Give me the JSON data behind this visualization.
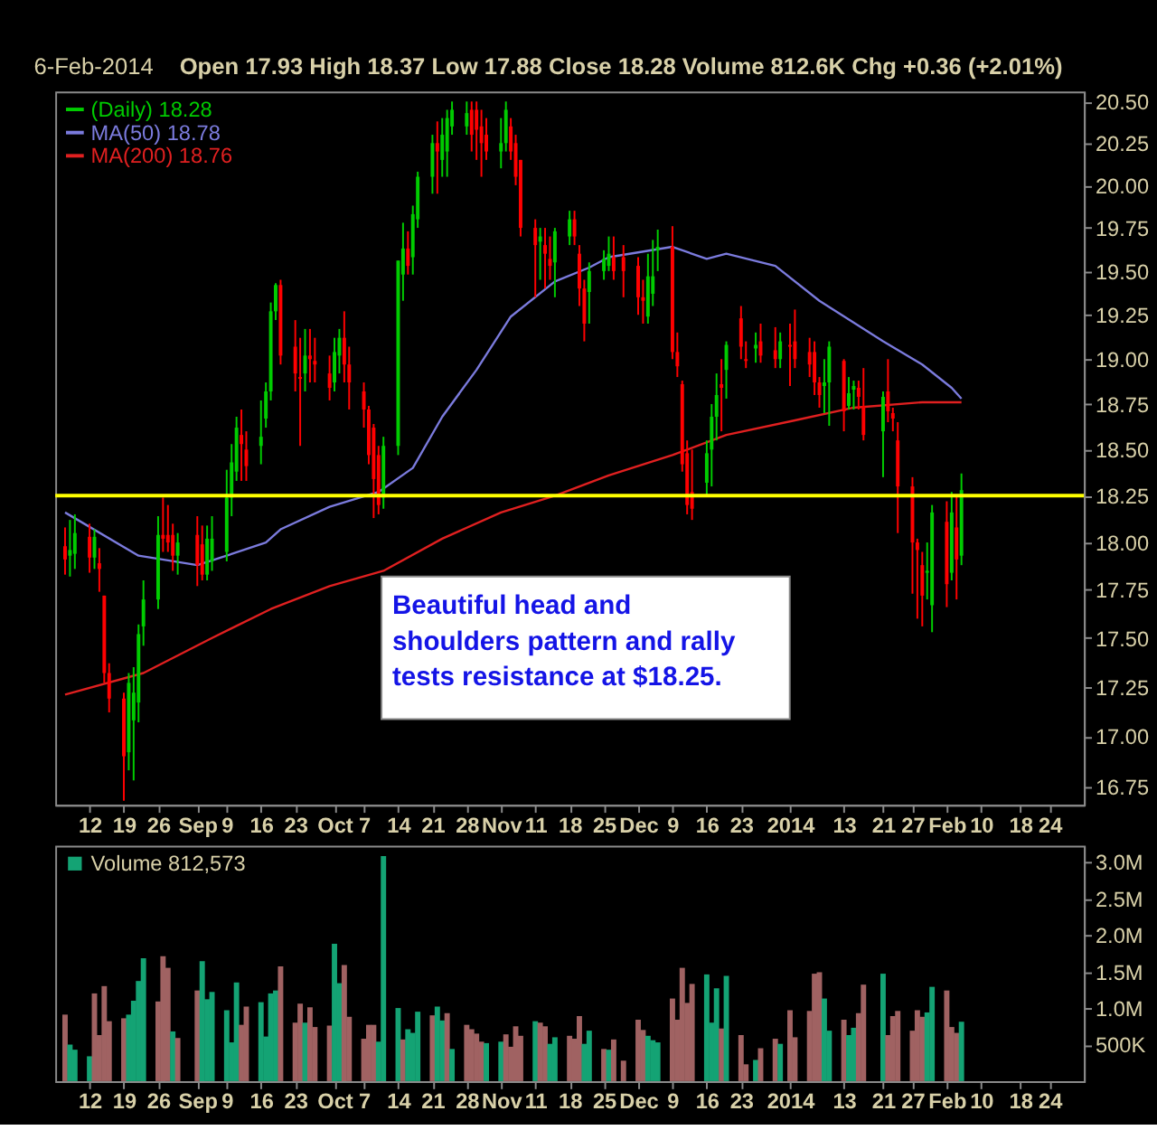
{
  "chart_data": [
    {
      "type": "candlestick",
      "log": true,
      "grid": false,
      "legend": "top left",
      "xlim": [
        "2013-08-05",
        "2014-03-03"
      ],
      "xticks": [
        {
          "value": "2013-08-12",
          "label": "12"
        },
        {
          "value": "2013-08-19",
          "label": "19"
        },
        {
          "value": "2013-08-26",
          "label": "26"
        },
        {
          "value": "2013-09-03",
          "label": "Sep"
        },
        {
          "value": "2013-09-09",
          "label": "9"
        },
        {
          "value": "2013-09-16",
          "label": "16"
        },
        {
          "value": "2013-09-23",
          "label": "23"
        },
        {
          "value": "2013-10-01",
          "label": "Oct"
        },
        {
          "value": "2013-10-07",
          "label": "7"
        },
        {
          "value": "2013-10-14",
          "label": "14"
        },
        {
          "value": "2013-10-21",
          "label": "21"
        },
        {
          "value": "2013-10-28",
          "label": "28"
        },
        {
          "value": "2013-11-04",
          "label": "Nov"
        },
        {
          "value": "2013-11-11",
          "label": "11"
        },
        {
          "value": "2013-11-18",
          "label": "18"
        },
        {
          "value": "2013-11-25",
          "label": "25"
        },
        {
          "value": "2013-12-02",
          "label": "Dec"
        },
        {
          "value": "2013-12-09",
          "label": "9"
        },
        {
          "value": "2013-12-16",
          "label": "16"
        },
        {
          "value": "2013-12-23",
          "label": "23"
        },
        {
          "value": "2014-01-02",
          "label": "2014"
        },
        {
          "value": "2014-01-13",
          "label": "13"
        },
        {
          "value": "2014-01-21",
          "label": "21"
        },
        {
          "value": "2014-01-27",
          "label": "27"
        },
        {
          "value": "2014-02-03",
          "label": "Feb"
        },
        {
          "value": "2014-02-10",
          "label": "10"
        },
        {
          "value": "2014-02-18",
          "label": "18"
        },
        {
          "value": "2014-02-24",
          "label": "24"
        }
      ],
      "ylim": [
        16.66,
        20.56
      ],
      "yticks": [
        {
          "value": 16.75,
          "label": "16.75"
        },
        {
          "value": 17,
          "label": "17.00"
        },
        {
          "value": 17.25,
          "label": "17.25"
        },
        {
          "value": 17.5,
          "label": "17.50"
        },
        {
          "value": 17.75,
          "label": "17.75"
        },
        {
          "value": 18,
          "label": "18.00"
        },
        {
          "value": 18.25,
          "label": "18.25"
        },
        {
          "value": 18.5,
          "label": "18.50"
        },
        {
          "value": 18.75,
          "label": "18.75"
        },
        {
          "value": 19,
          "label": "19.00"
        },
        {
          "value": 19.25,
          "label": "19.25"
        },
        {
          "value": 19.5,
          "label": "19.50"
        },
        {
          "value": 19.75,
          "label": "19.75"
        },
        {
          "value": 20,
          "label": "20.00"
        },
        {
          "value": 20.25,
          "label": "20.25"
        },
        {
          "value": 20.5,
          "label": "20.50"
        }
      ],
      "series": [
        {
          "name": "(Daily) 18.28",
          "type": "candlestick",
          "color": "#00cc00",
          "x": [
            "2013-08-07",
            "2013-08-08",
            "2013-08-09",
            "2013-08-12",
            "2013-08-13",
            "2013-08-14",
            "2013-08-15",
            "2013-08-16",
            "2013-08-19",
            "2013-08-20",
            "2013-08-21",
            "2013-08-22",
            "2013-08-23",
            "2013-08-26",
            "2013-08-27",
            "2013-08-28",
            "2013-08-29",
            "2013-08-30",
            "2013-09-03",
            "2013-09-04",
            "2013-09-05",
            "2013-09-06",
            "2013-09-09",
            "2013-09-10",
            "2013-09-11",
            "2013-09-12",
            "2013-09-13",
            "2013-09-16",
            "2013-09-17",
            "2013-09-18",
            "2013-09-19",
            "2013-09-20",
            "2013-09-23",
            "2013-09-24",
            "2013-09-25",
            "2013-09-26",
            "2013-09-27",
            "2013-09-30",
            "2013-10-01",
            "2013-10-02",
            "2013-10-03",
            "2013-10-04",
            "2013-10-07",
            "2013-10-08",
            "2013-10-09",
            "2013-10-10",
            "2013-10-11",
            "2013-10-14",
            "2013-10-15",
            "2013-10-16",
            "2013-10-17",
            "2013-10-18",
            "2013-10-21",
            "2013-10-22",
            "2013-10-23",
            "2013-10-24",
            "2013-10-25",
            "2013-10-28",
            "2013-10-29",
            "2013-10-30",
            "2013-10-31",
            "2013-11-01",
            "2013-11-04",
            "2013-11-05",
            "2013-11-06",
            "2013-11-07",
            "2013-11-08",
            "2013-11-11",
            "2013-11-12",
            "2013-11-13",
            "2013-11-14",
            "2013-11-15",
            "2013-11-18",
            "2013-11-19",
            "2013-11-20",
            "2013-11-21",
            "2013-11-22",
            "2013-11-25",
            "2013-11-26",
            "2013-11-27",
            "2013-11-29",
            "2013-12-02",
            "2013-12-03",
            "2013-12-04",
            "2013-12-05",
            "2013-12-06",
            "2013-12-09",
            "2013-12-10",
            "2013-12-11",
            "2013-12-12",
            "2013-12-13",
            "2013-12-16",
            "2013-12-17",
            "2013-12-18",
            "2013-12-19",
            "2013-12-20",
            "2013-12-23",
            "2013-12-24",
            "2013-12-26",
            "2013-12-27",
            "2013-12-30",
            "2013-12-31",
            "2014-01-02",
            "2014-01-03",
            "2014-01-06",
            "2014-01-07",
            "2014-01-08",
            "2014-01-09",
            "2014-01-10",
            "2014-01-13",
            "2014-01-14",
            "2014-01-15",
            "2014-01-16",
            "2014-01-17",
            "2014-01-21",
            "2014-01-22",
            "2014-01-23",
            "2014-01-24",
            "2014-01-27",
            "2014-01-28",
            "2014-01-29",
            "2014-01-30",
            "2014-01-31",
            "2014-02-03",
            "2014-02-04",
            "2014-02-05",
            "2014-02-06"
          ],
          "ohlc": [
            [
              17.98,
              18.08,
              17.83,
              17.91
            ],
            [
              17.93,
              18.12,
              17.82,
              17.96
            ],
            [
              17.94,
              18.15,
              17.86,
              18.05
            ],
            [
              18.03,
              18.1,
              17.84,
              17.92
            ],
            [
              17.92,
              18.07,
              17.86,
              18.03
            ],
            [
              17.89,
              17.97,
              17.74,
              17.86
            ],
            [
              17.72,
              17.72,
              17.27,
              17.32
            ],
            [
              17.32,
              17.37,
              17.12,
              17.19
            ],
            [
              17.19,
              17.22,
              16.68,
              16.9
            ],
            [
              16.92,
              17.32,
              16.83,
              17.27
            ],
            [
              17.08,
              17.35,
              16.78,
              17.22
            ],
            [
              17.17,
              17.57,
              17.07,
              17.52
            ],
            [
              17.56,
              17.8,
              17.46,
              17.7
            ],
            [
              17.7,
              18.14,
              17.65,
              18.04
            ],
            [
              18.04,
              18.24,
              17.95,
              18.02
            ],
            [
              18.04,
              18.2,
              17.95,
              18.0
            ],
            [
              18.04,
              18.1,
              17.85,
              17.93
            ],
            [
              17.93,
              18.05,
              17.83,
              18.0
            ],
            [
              18.04,
              18.14,
              17.77,
              17.88
            ],
            [
              17.99,
              18.09,
              17.8,
              17.83
            ],
            [
              17.83,
              18.09,
              17.8,
              18.02
            ],
            [
              17.9,
              18.14,
              17.85,
              18.02
            ],
            [
              17.95,
              18.39,
              17.9,
              18.24
            ],
            [
              18.24,
              18.53,
              18.14,
              18.43
            ],
            [
              18.38,
              18.68,
              18.33,
              18.62
            ],
            [
              18.58,
              18.72,
              18.33,
              18.53
            ],
            [
              18.5,
              18.6,
              18.33,
              18.41
            ],
            [
              18.52,
              18.77,
              18.42,
              18.57
            ],
            [
              18.67,
              18.87,
              18.62,
              18.82
            ],
            [
              18.82,
              19.32,
              18.77,
              19.27
            ],
            [
              19.27,
              19.43,
              19.22,
              19.42
            ],
            [
              19.42,
              19.45,
              18.97,
              19.02
            ],
            [
              19.07,
              19.22,
              18.82,
              18.92
            ],
            [
              18.9,
              19.12,
              18.52,
              18.89
            ],
            [
              18.92,
              19.17,
              18.82,
              19.02
            ],
            [
              19.02,
              19.17,
              18.87,
              19.0
            ],
            [
              18.99,
              19.12,
              18.87,
              18.97
            ],
            [
              18.92,
              19.02,
              18.77,
              18.84
            ],
            [
              18.87,
              19.12,
              18.82,
              19.04
            ],
            [
              19.02,
              19.17,
              18.92,
              19.12
            ],
            [
              19.12,
              19.27,
              18.87,
              18.97
            ],
            [
              18.97,
              19.07,
              18.72,
              18.87
            ],
            [
              18.82,
              18.87,
              18.62,
              18.72
            ],
            [
              18.72,
              18.74,
              18.42,
              18.47
            ],
            [
              18.62,
              18.64,
              18.13,
              18.34
            ],
            [
              18.47,
              18.52,
              18.15,
              18.2
            ],
            [
              18.24,
              18.57,
              18.18,
              18.52
            ],
            [
              18.52,
              19.56,
              18.47,
              19.56
            ],
            [
              19.48,
              19.78,
              19.33,
              19.63
            ],
            [
              19.63,
              19.73,
              19.48,
              19.53
            ],
            [
              19.58,
              19.88,
              19.48,
              19.83
            ],
            [
              19.8,
              20.08,
              19.75,
              20.05
            ],
            [
              20.05,
              20.3,
              19.95,
              20.25
            ],
            [
              20.25,
              20.38,
              19.95,
              20.2
            ],
            [
              20.15,
              20.4,
              20.05,
              20.3
            ],
            [
              20.2,
              20.45,
              20.05,
              20.4
            ],
            [
              20.35,
              20.5,
              20.3,
              20.45
            ],
            [
              20.35,
              20.5,
              20.3,
              20.43
            ],
            [
              20.45,
              20.5,
              20.2,
              20.3
            ],
            [
              20.45,
              20.5,
              20.15,
              20.33
            ],
            [
              20.35,
              20.45,
              20.05,
              20.25
            ],
            [
              20.3,
              20.4,
              20.15,
              20.2
            ],
            [
              20.2,
              20.4,
              20.1,
              20.25
            ],
            [
              20.25,
              20.5,
              20.2,
              20.45
            ],
            [
              20.35,
              20.4,
              20.15,
              20.2
            ],
            [
              20.25,
              20.3,
              20.0,
              20.05
            ],
            [
              20.15,
              20.15,
              19.7,
              19.75
            ],
            [
              19.75,
              19.8,
              19.35,
              19.65
            ],
            [
              19.67,
              19.75,
              19.45,
              19.7
            ],
            [
              19.65,
              19.75,
              19.4,
              19.6
            ],
            [
              19.57,
              19.7,
              19.45,
              19.53
            ],
            [
              19.55,
              19.75,
              19.35,
              19.73
            ],
            [
              19.7,
              19.85,
              19.65,
              19.8
            ],
            [
              19.8,
              19.85,
              19.65,
              19.7
            ],
            [
              19.6,
              19.65,
              19.3,
              19.4
            ],
            [
              19.4,
              19.45,
              19.1,
              19.2
            ],
            [
              19.38,
              19.55,
              19.2,
              19.5
            ],
            [
              19.5,
              19.62,
              19.45,
              19.57
            ],
            [
              19.53,
              19.7,
              19.5,
              19.6
            ],
            [
              19.58,
              19.7,
              19.45,
              19.5
            ],
            [
              19.58,
              19.65,
              19.35,
              19.5
            ],
            [
              19.53,
              19.58,
              19.25,
              19.35
            ],
            [
              19.35,
              19.45,
              19.2,
              19.33
            ],
            [
              19.24,
              19.6,
              19.2,
              19.47
            ],
            [
              19.37,
              19.68,
              19.3,
              19.47
            ],
            [
              19.62,
              19.74,
              19.5,
              19.64
            ],
            [
              19.64,
              19.76,
              19.0,
              19.04
            ],
            [
              19.04,
              19.15,
              18.9,
              18.96
            ],
            [
              18.86,
              18.88,
              18.38,
              18.42
            ],
            [
              18.48,
              18.55,
              18.15,
              18.2
            ],
            [
              18.27,
              18.5,
              18.12,
              18.18
            ],
            [
              18.32,
              18.55,
              18.25,
              18.48
            ],
            [
              18.5,
              18.75,
              18.3,
              18.68
            ],
            [
              18.68,
              18.92,
              18.55,
              18.8
            ],
            [
              18.86,
              19.0,
              18.6,
              18.84
            ],
            [
              18.94,
              19.1,
              18.78,
              19.08
            ],
            [
              19.23,
              19.3,
              19.0,
              19.07
            ],
            [
              19.0,
              19.1,
              18.95,
              18.99
            ],
            [
              19.06,
              19.15,
              18.98,
              19.08
            ],
            [
              19.1,
              19.2,
              18.98,
              19.02
            ],
            [
              19.05,
              19.18,
              18.95,
              19.0
            ],
            [
              19.0,
              19.15,
              18.95,
              19.1
            ],
            [
              19.08,
              19.2,
              18.85,
              19.07
            ],
            [
              19.1,
              19.28,
              18.95,
              19.0
            ],
            [
              19.04,
              19.12,
              18.9,
              18.97
            ],
            [
              19.04,
              19.1,
              18.8,
              18.87
            ],
            [
              18.87,
              18.9,
              18.73,
              18.8
            ],
            [
              18.85,
              19.0,
              18.7,
              18.87
            ],
            [
              18.87,
              19.1,
              18.63,
              19.07
            ],
            [
              18.99,
              19.0,
              18.6,
              18.71
            ],
            [
              18.74,
              18.9,
              18.72,
              18.81
            ],
            [
              18.83,
              18.88,
              18.72,
              18.85
            ],
            [
              18.84,
              18.88,
              18.72,
              18.79
            ],
            [
              18.74,
              18.95,
              18.55,
              18.58
            ],
            [
              18.6,
              18.82,
              18.35,
              18.79
            ],
            [
              18.82,
              19.0,
              18.65,
              18.71
            ],
            [
              18.7,
              18.73,
              18.6,
              18.67
            ],
            [
              18.55,
              18.65,
              18.05,
              18.3
            ],
            [
              18.3,
              18.35,
              17.73,
              18.0
            ],
            [
              18.0,
              18.02,
              17.6,
              17.96
            ],
            [
              17.88,
              17.95,
              17.56,
              17.72
            ],
            [
              17.84,
              18.0,
              17.7,
              17.85
            ],
            [
              17.67,
              18.2,
              17.53,
              18.16
            ],
            [
              18.11,
              18.22,
              17.66,
              17.78
            ],
            [
              17.84,
              18.27,
              17.8,
              18.16
            ],
            [
              18.08,
              18.25,
              17.7,
              17.91
            ],
            [
              17.93,
              18.37,
              17.88,
              18.28
            ]
          ],
          "colors": [
            "#ff0000",
            "#00cc00",
            "#00cc00",
            "#ff0000",
            "#00cc00",
            "#ff0000",
            "#ff0000",
            "#ff0000",
            "#ff0000",
            "#00cc00",
            "#00cc00",
            "#00cc00",
            "#00cc00",
            "#00cc00",
            "#ff0000",
            "#ff0000",
            "#ff0000",
            "#00cc00",
            "#ff0000",
            "#ff0000",
            "#00cc00",
            "#00cc00",
            "#00cc00",
            "#00cc00",
            "#00cc00",
            "#ff0000",
            "#ff0000",
            "#00cc00",
            "#00cc00",
            "#00cc00",
            "#00cc00",
            "#ff0000",
            "#ff0000",
            "#ff0000",
            "#00cc00",
            "#ff0000",
            "#ff0000",
            "#ff0000",
            "#00cc00",
            "#00cc00",
            "#ff0000",
            "#ff0000",
            "#ff0000",
            "#ff0000",
            "#ff0000",
            "#ff0000",
            "#00cc00",
            "#00cc00",
            "#00cc00",
            "#ff0000",
            "#00cc00",
            "#00cc00",
            "#00cc00",
            "#ff0000",
            "#00cc00",
            "#00cc00",
            "#00cc00",
            "#00cc00",
            "#ff0000",
            "#ff0000",
            "#ff0000",
            "#ff0000",
            "#00cc00",
            "#00cc00",
            "#ff0000",
            "#ff0000",
            "#ff0000",
            "#ff0000",
            "#00cc00",
            "#ff0000",
            "#ff0000",
            "#00cc00",
            "#00cc00",
            "#ff0000",
            "#ff0000",
            "#ff0000",
            "#00cc00",
            "#00cc00",
            "#00cc00",
            "#ff0000",
            "#ff0000",
            "#ff0000",
            "#ff0000",
            "#00cc00",
            "#00cc00",
            "#00cc00",
            "#ff0000",
            "#ff0000",
            "#ff0000",
            "#ff0000",
            "#ff0000",
            "#00cc00",
            "#00cc00",
            "#00cc00",
            "#ff0000",
            "#00cc00",
            "#ff0000",
            "#ff0000",
            "#00cc00",
            "#ff0000",
            "#ff0000",
            "#00cc00",
            "#ff0000",
            "#ff0000",
            "#ff0000",
            "#ff0000",
            "#ff0000",
            "#00cc00",
            "#00cc00",
            "#ff0000",
            "#00cc00",
            "#00cc00",
            "#ff0000",
            "#ff0000",
            "#00cc00",
            "#ff0000",
            "#ff0000",
            "#ff0000",
            "#ff0000",
            "#ff0000",
            "#ff0000",
            "#00cc00",
            "#00cc00",
            "#ff0000",
            "#00cc00",
            "#ff0000",
            "#00cc00"
          ]
        },
        {
          "name": "MA(50) 18.78",
          "type": "line",
          "color": "#7b7bdd",
          "x": [
            "2013-08-07",
            "2013-08-22",
            "2013-09-03",
            "2013-09-09",
            "2013-09-17",
            "2013-09-20",
            "2013-09-30",
            "2013-10-10",
            "2013-10-17",
            "2013-10-23",
            "2013-10-30",
            "2013-11-06",
            "2013-11-15",
            "2013-11-22",
            "2013-11-26",
            "2013-12-09",
            "2013-12-16",
            "2013-12-20",
            "2013-12-30",
            "2014-01-08",
            "2014-01-21",
            "2014-01-29",
            "2014-02-04",
            "2014-02-06"
          ],
          "values": [
            18.16,
            17.93,
            17.88,
            17.93,
            18.0,
            18.07,
            18.19,
            18.27,
            18.4,
            18.68,
            18.94,
            19.24,
            19.44,
            19.52,
            19.58,
            19.64,
            19.57,
            19.6,
            19.53,
            19.33,
            19.1,
            18.97,
            18.84,
            18.78
          ]
        },
        {
          "name": "MA(200) 18.76",
          "type": "line",
          "color": "#e02020",
          "x": [
            "2013-08-07",
            "2013-08-23",
            "2013-09-06",
            "2013-09-18",
            "2013-09-30",
            "2013-10-11",
            "2013-10-23",
            "2013-11-04",
            "2013-11-15",
            "2013-11-26",
            "2013-12-09",
            "2013-12-20",
            "2014-01-03",
            "2014-01-15",
            "2014-01-29",
            "2014-02-06"
          ],
          "values": [
            17.21,
            17.32,
            17.5,
            17.65,
            17.77,
            17.85,
            18.02,
            18.16,
            18.25,
            18.36,
            18.47,
            18.58,
            18.66,
            18.73,
            18.76,
            18.76
          ]
        }
      ],
      "ref_lines": [
        {
          "axis": "y",
          "value": 18.25,
          "color": "#ffff00"
        }
      ],
      "annotations": [
        "6-Feb-2014",
        "Open 17.93 High 18.37 Low 17.88 Close 18.28 Volume 812.6K Chg +0.36 (+2.01%)",
        "Beautiful head and shoulders pattern and rally tests resistance at $18.25."
      ]
    },
    {
      "type": "bar",
      "grid": false,
      "legend": "top left",
      "xlim": [
        "2013-08-05",
        "2014-03-03"
      ],
      "xticks": [
        {
          "value": "2013-08-12",
          "label": "12"
        },
        {
          "value": "2013-08-19",
          "label": "19"
        },
        {
          "value": "2013-08-26",
          "label": "26"
        },
        {
          "value": "2013-09-03",
          "label": "Sep"
        },
        {
          "value": "2013-09-09",
          "label": "9"
        },
        {
          "value": "2013-09-16",
          "label": "16"
        },
        {
          "value": "2013-09-23",
          "label": "23"
        },
        {
          "value": "2013-10-01",
          "label": "Oct"
        },
        {
          "value": "2013-10-07",
          "label": "7"
        },
        {
          "value": "2013-10-14",
          "label": "14"
        },
        {
          "value": "2013-10-21",
          "label": "21"
        },
        {
          "value": "2013-10-28",
          "label": "28"
        },
        {
          "value": "2013-11-04",
          "label": "Nov"
        },
        {
          "value": "2013-11-11",
          "label": "11"
        },
        {
          "value": "2013-11-18",
          "label": "18"
        },
        {
          "value": "2013-11-25",
          "label": "25"
        },
        {
          "value": "2013-12-02",
          "label": "Dec"
        },
        {
          "value": "2013-12-09",
          "label": "9"
        },
        {
          "value": "2013-12-16",
          "label": "16"
        },
        {
          "value": "2013-12-23",
          "label": "23"
        },
        {
          "value": "2014-01-02",
          "label": "2014"
        },
        {
          "value": "2014-01-13",
          "label": "13"
        },
        {
          "value": "2014-01-21",
          "label": "21"
        },
        {
          "value": "2014-01-27",
          "label": "27"
        },
        {
          "value": "2014-02-03",
          "label": "Feb"
        },
        {
          "value": "2014-02-10",
          "label": "10"
        },
        {
          "value": "2014-02-18",
          "label": "18"
        },
        {
          "value": "2014-02-24",
          "label": "24"
        }
      ],
      "ylim": [
        0,
        3220000
      ],
      "yticks": [
        {
          "value": 500000,
          "label": "500K"
        },
        {
          "value": 1000000,
          "label": "1.0M"
        },
        {
          "value": 1500000,
          "label": "1.5M"
        },
        {
          "value": 2000000,
          "label": "2.0M"
        },
        {
          "value": 2500000,
          "label": "2.5M"
        },
        {
          "value": 3000000,
          "label": "3.0M"
        }
      ],
      "x": [
        "2013-08-07",
        "2013-08-08",
        "2013-08-09",
        "2013-08-12",
        "2013-08-13",
        "2013-08-14",
        "2013-08-15",
        "2013-08-16",
        "2013-08-19",
        "2013-08-20",
        "2013-08-21",
        "2013-08-22",
        "2013-08-23",
        "2013-08-26",
        "2013-08-27",
        "2013-08-28",
        "2013-08-29",
        "2013-08-30",
        "2013-09-03",
        "2013-09-04",
        "2013-09-05",
        "2013-09-06",
        "2013-09-09",
        "2013-09-10",
        "2013-09-11",
        "2013-09-12",
        "2013-09-13",
        "2013-09-16",
        "2013-09-17",
        "2013-09-18",
        "2013-09-19",
        "2013-09-20",
        "2013-09-23",
        "2013-09-24",
        "2013-09-25",
        "2013-09-26",
        "2013-09-27",
        "2013-09-30",
        "2013-10-01",
        "2013-10-02",
        "2013-10-03",
        "2013-10-04",
        "2013-10-07",
        "2013-10-08",
        "2013-10-09",
        "2013-10-10",
        "2013-10-11",
        "2013-10-14",
        "2013-10-15",
        "2013-10-16",
        "2013-10-17",
        "2013-10-18",
        "2013-10-21",
        "2013-10-22",
        "2013-10-23",
        "2013-10-24",
        "2013-10-25",
        "2013-10-28",
        "2013-10-29",
        "2013-10-30",
        "2013-10-31",
        "2013-11-01",
        "2013-11-04",
        "2013-11-05",
        "2013-11-06",
        "2013-11-07",
        "2013-11-08",
        "2013-11-11",
        "2013-11-12",
        "2013-11-13",
        "2013-11-14",
        "2013-11-15",
        "2013-11-18",
        "2013-11-19",
        "2013-11-20",
        "2013-11-21",
        "2013-11-22",
        "2013-11-25",
        "2013-11-26",
        "2013-11-27",
        "2013-11-29",
        "2013-12-02",
        "2013-12-03",
        "2013-12-04",
        "2013-12-05",
        "2013-12-06",
        "2013-12-09",
        "2013-12-10",
        "2013-12-11",
        "2013-12-12",
        "2013-12-13",
        "2013-12-16",
        "2013-12-17",
        "2013-12-18",
        "2013-12-19",
        "2013-12-20",
        "2013-12-23",
        "2013-12-24",
        "2013-12-26",
        "2013-12-27",
        "2013-12-30",
        "2013-12-31",
        "2014-01-02",
        "2014-01-03",
        "2014-01-06",
        "2014-01-07",
        "2014-01-08",
        "2014-01-09",
        "2014-01-10",
        "2014-01-13",
        "2014-01-14",
        "2014-01-15",
        "2014-01-16",
        "2014-01-17",
        "2014-01-21",
        "2014-01-22",
        "2014-01-23",
        "2014-01-24",
        "2014-01-27",
        "2014-01-28",
        "2014-01-29",
        "2014-01-30",
        "2014-01-31",
        "2014-02-03",
        "2014-02-04",
        "2014-02-05",
        "2014-02-06"
      ],
      "series": [
        {
          "name": "Volume 812,573",
          "color": "#14a374",
          "values": [
            910000,
            500000,
            430000,
            340000,
            1200000,
            630000,
            1300000,
            820000,
            860000,
            910000,
            1100000,
            1370000,
            1680000,
            1090000,
            1710000,
            1550000,
            680000,
            590000,
            1240000,
            1640000,
            1120000,
            1220000,
            970000,
            530000,
            1350000,
            770000,
            1020000,
            1080000,
            610000,
            1200000,
            1240000,
            1570000,
            800000,
            1060000,
            800000,
            1010000,
            740000,
            760000,
            1880000,
            1340000,
            1590000,
            880000,
            580000,
            770000,
            770000,
            540000,
            3080000,
            1000000,
            570000,
            710000,
            660000,
            950000,
            900000,
            1020000,
            830000,
            930000,
            440000,
            770000,
            710000,
            650000,
            540000,
            520000,
            540000,
            640000,
            470000,
            750000,
            620000,
            820000,
            800000,
            750000,
            510000,
            600000,
            620000,
            580000,
            890000,
            510000,
            690000,
            440000,
            430000,
            570000,
            280000,
            840000,
            700000,
            620000,
            560000,
            530000,
            1130000,
            840000,
            1550000,
            1070000,
            1330000,
            1460000,
            800000,
            1270000,
            720000,
            1440000,
            630000,
            230000,
            290000,
            450000,
            580000,
            510000,
            970000,
            600000,
            960000,
            1470000,
            1490000,
            1130000,
            690000,
            840000,
            630000,
            730000,
            930000,
            1320000,
            1470000,
            630000,
            890000,
            960000,
            690000,
            970000,
            880000,
            940000,
            1290000,
            1240000,
            740000,
            660000,
            812573
          ],
          "colors": [
            "#a06262",
            "#14a374",
            "#14a374",
            "#14a374",
            "#a06262",
            "#a06262",
            "#a06262",
            "#a06262",
            "#a06262",
            "#14a374",
            "#14a374",
            "#14a374",
            "#14a374",
            "#a06262",
            "#a06262",
            "#a06262",
            "#14a374",
            "#a06262",
            "#a06262",
            "#14a374",
            "#14a374",
            "#14a374",
            "#14a374",
            "#14a374",
            "#14a374",
            "#a06262",
            "#a06262",
            "#14a374",
            "#14a374",
            "#14a374",
            "#14a374",
            "#a06262",
            "#a06262",
            "#a06262",
            "#14a374",
            "#a06262",
            "#a06262",
            "#a06262",
            "#14a374",
            "#14a374",
            "#a06262",
            "#a06262",
            "#a06262",
            "#a06262",
            "#a06262",
            "#14a374",
            "#14a374",
            "#14a374",
            "#a06262",
            "#14a374",
            "#14a374",
            "#14a374",
            "#a06262",
            "#14a374",
            "#14a374",
            "#a06262",
            "#14a374",
            "#a06262",
            "#a06262",
            "#a06262",
            "#a06262",
            "#14a374",
            "#14a374",
            "#a06262",
            "#a06262",
            "#a06262",
            "#a06262",
            "#14a374",
            "#a06262",
            "#a06262",
            "#14a374",
            "#14a374",
            "#a06262",
            "#a06262",
            "#a06262",
            "#14a374",
            "#14a374",
            "#a06262",
            "#14a374",
            "#a06262",
            "#a06262",
            "#a06262",
            "#a06262",
            "#14a374",
            "#14a374",
            "#14a374",
            "#a06262",
            "#a06262",
            "#a06262",
            "#a06262",
            "#a06262",
            "#14a374",
            "#14a374",
            "#14a374",
            "#a06262",
            "#14a374",
            "#a06262",
            "#a06262",
            "#14a374",
            "#a06262",
            "#a06262",
            "#14a374",
            "#a06262",
            "#a06262",
            "#a06262",
            "#a06262",
            "#a06262",
            "#14a374",
            "#14a374",
            "#a06262",
            "#14a374",
            "#14a374",
            "#a06262",
            "#a06262",
            "#14a374",
            "#a06262",
            "#a06262",
            "#a06262",
            "#a06262",
            "#a06262",
            "#a06262",
            "#14a374",
            "#14a374",
            "#a06262",
            "#a06262",
            "#a06262",
            "#14a374"
          ]
        }
      ]
    }
  ]
}
